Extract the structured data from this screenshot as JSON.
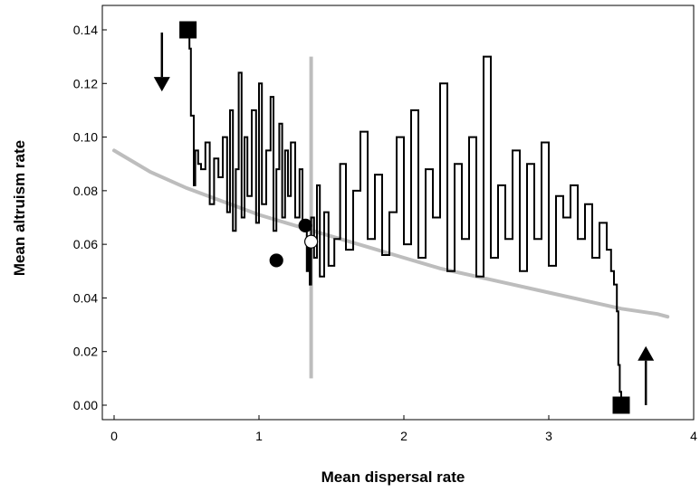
{
  "chart_data": {
    "type": "line",
    "title": "",
    "xlabel": "Mean dispersal rate",
    "ylabel": "Mean altruism rate",
    "xlim": [
      0,
      4
    ],
    "ylim": [
      0,
      0.14
    ],
    "xticks": [
      0,
      1,
      2,
      3,
      4
    ],
    "yticks": [
      0.0,
      0.02,
      0.04,
      0.06,
      0.08,
      0.1,
      0.12,
      0.14
    ],
    "xtick_labels": [
      "0",
      "1",
      "2",
      "3",
      "4"
    ],
    "ytick_labels": [
      "0.00",
      "0.02",
      "0.04",
      "0.06",
      "0.08",
      "0.10",
      "0.12",
      "0.14"
    ],
    "grid": false,
    "legend": "none",
    "series": [
      {
        "style": "black-stepped-trajectory",
        "color": "#000000",
        "x": [
          0.51,
          0.52,
          0.53,
          0.53,
          0.55,
          0.55,
          0.56,
          0.58,
          0.6,
          0.63,
          0.66,
          0.69,
          0.72,
          0.75,
          0.78,
          0.8,
          0.82,
          0.84,
          0.86,
          0.88,
          0.9,
          0.92,
          0.95,
          0.98,
          1.0,
          1.02,
          1.05,
          1.08,
          1.1,
          1.12,
          1.14,
          1.16,
          1.18,
          1.2,
          1.22,
          1.25,
          1.28,
          1.3,
          1.32,
          1.33,
          1.34,
          1.35,
          1.36,
          1.38,
          1.4,
          1.42,
          1.45,
          1.48,
          1.52,
          1.56,
          1.6,
          1.65,
          1.7,
          1.75,
          1.8,
          1.85,
          1.9,
          1.95,
          2.0,
          2.05,
          2.1,
          2.15,
          2.2,
          2.25,
          2.3,
          2.35,
          2.4,
          2.45,
          2.5,
          2.55,
          2.6,
          2.65,
          2.7,
          2.75,
          2.8,
          2.85,
          2.9,
          2.95,
          3.0,
          3.05,
          3.1,
          3.15,
          3.2,
          3.25,
          3.3,
          3.35,
          3.4,
          3.43,
          3.45,
          3.47,
          3.48,
          3.49,
          3.5
        ],
        "y": [
          0.14,
          0.133,
          0.125,
          0.108,
          0.1,
          0.082,
          0.095,
          0.09,
          0.088,
          0.098,
          0.075,
          0.092,
          0.085,
          0.1,
          0.072,
          0.11,
          0.065,
          0.088,
          0.124,
          0.07,
          0.1,
          0.078,
          0.11,
          0.068,
          0.12,
          0.075,
          0.095,
          0.115,
          0.065,
          0.088,
          0.105,
          0.07,
          0.095,
          0.078,
          0.098,
          0.07,
          0.088,
          0.066,
          0.065,
          0.05,
          0.06,
          0.045,
          0.07,
          0.055,
          0.082,
          0.048,
          0.072,
          0.052,
          0.062,
          0.09,
          0.058,
          0.08,
          0.102,
          0.062,
          0.086,
          0.056,
          0.072,
          0.1,
          0.06,
          0.11,
          0.055,
          0.088,
          0.07,
          0.12,
          0.05,
          0.09,
          0.062,
          0.1,
          0.048,
          0.13,
          0.055,
          0.082,
          0.062,
          0.095,
          0.05,
          0.09,
          0.062,
          0.098,
          0.052,
          0.078,
          0.07,
          0.082,
          0.062,
          0.075,
          0.055,
          0.068,
          0.058,
          0.05,
          0.045,
          0.035,
          0.015,
          0.005,
          0.0
        ]
      },
      {
        "style": "grey-fitted-curve",
        "color": "#bdbdbd",
        "x": [
          0.0,
          0.25,
          0.5,
          0.75,
          1.0,
          1.25,
          1.5,
          1.75,
          2.0,
          2.25,
          2.5,
          2.75,
          3.0,
          3.25,
          3.5,
          3.75,
          3.82
        ],
        "y": [
          0.095,
          0.087,
          0.081,
          0.076,
          0.071,
          0.067,
          0.063,
          0.059,
          0.055,
          0.051,
          0.048,
          0.045,
          0.042,
          0.039,
          0.036,
          0.034,
          0.033
        ]
      }
    ],
    "vertical_line": {
      "x": 1.36,
      "y_range": [
        0.01,
        0.13
      ],
      "color": "#bdbdbd"
    },
    "markers": [
      {
        "shape": "square",
        "fill": "#000000",
        "x": 0.51,
        "y": 0.14
      },
      {
        "shape": "square",
        "fill": "#000000",
        "x": 3.5,
        "y": 0.0
      },
      {
        "shape": "circle",
        "fill": "#000000",
        "x": 1.12,
        "y": 0.054
      },
      {
        "shape": "circle",
        "fill": "#000000",
        "x": 1.32,
        "y": 0.067
      },
      {
        "shape": "circle",
        "fill": "#ffffff",
        "x": 1.36,
        "y": 0.061
      }
    ],
    "arrows": [
      {
        "direction": "down",
        "x": 0.33,
        "y_from": 0.139,
        "y_to": 0.117
      },
      {
        "direction": "up",
        "x": 3.67,
        "y_from": 0.0,
        "y_to": 0.022
      }
    ]
  }
}
